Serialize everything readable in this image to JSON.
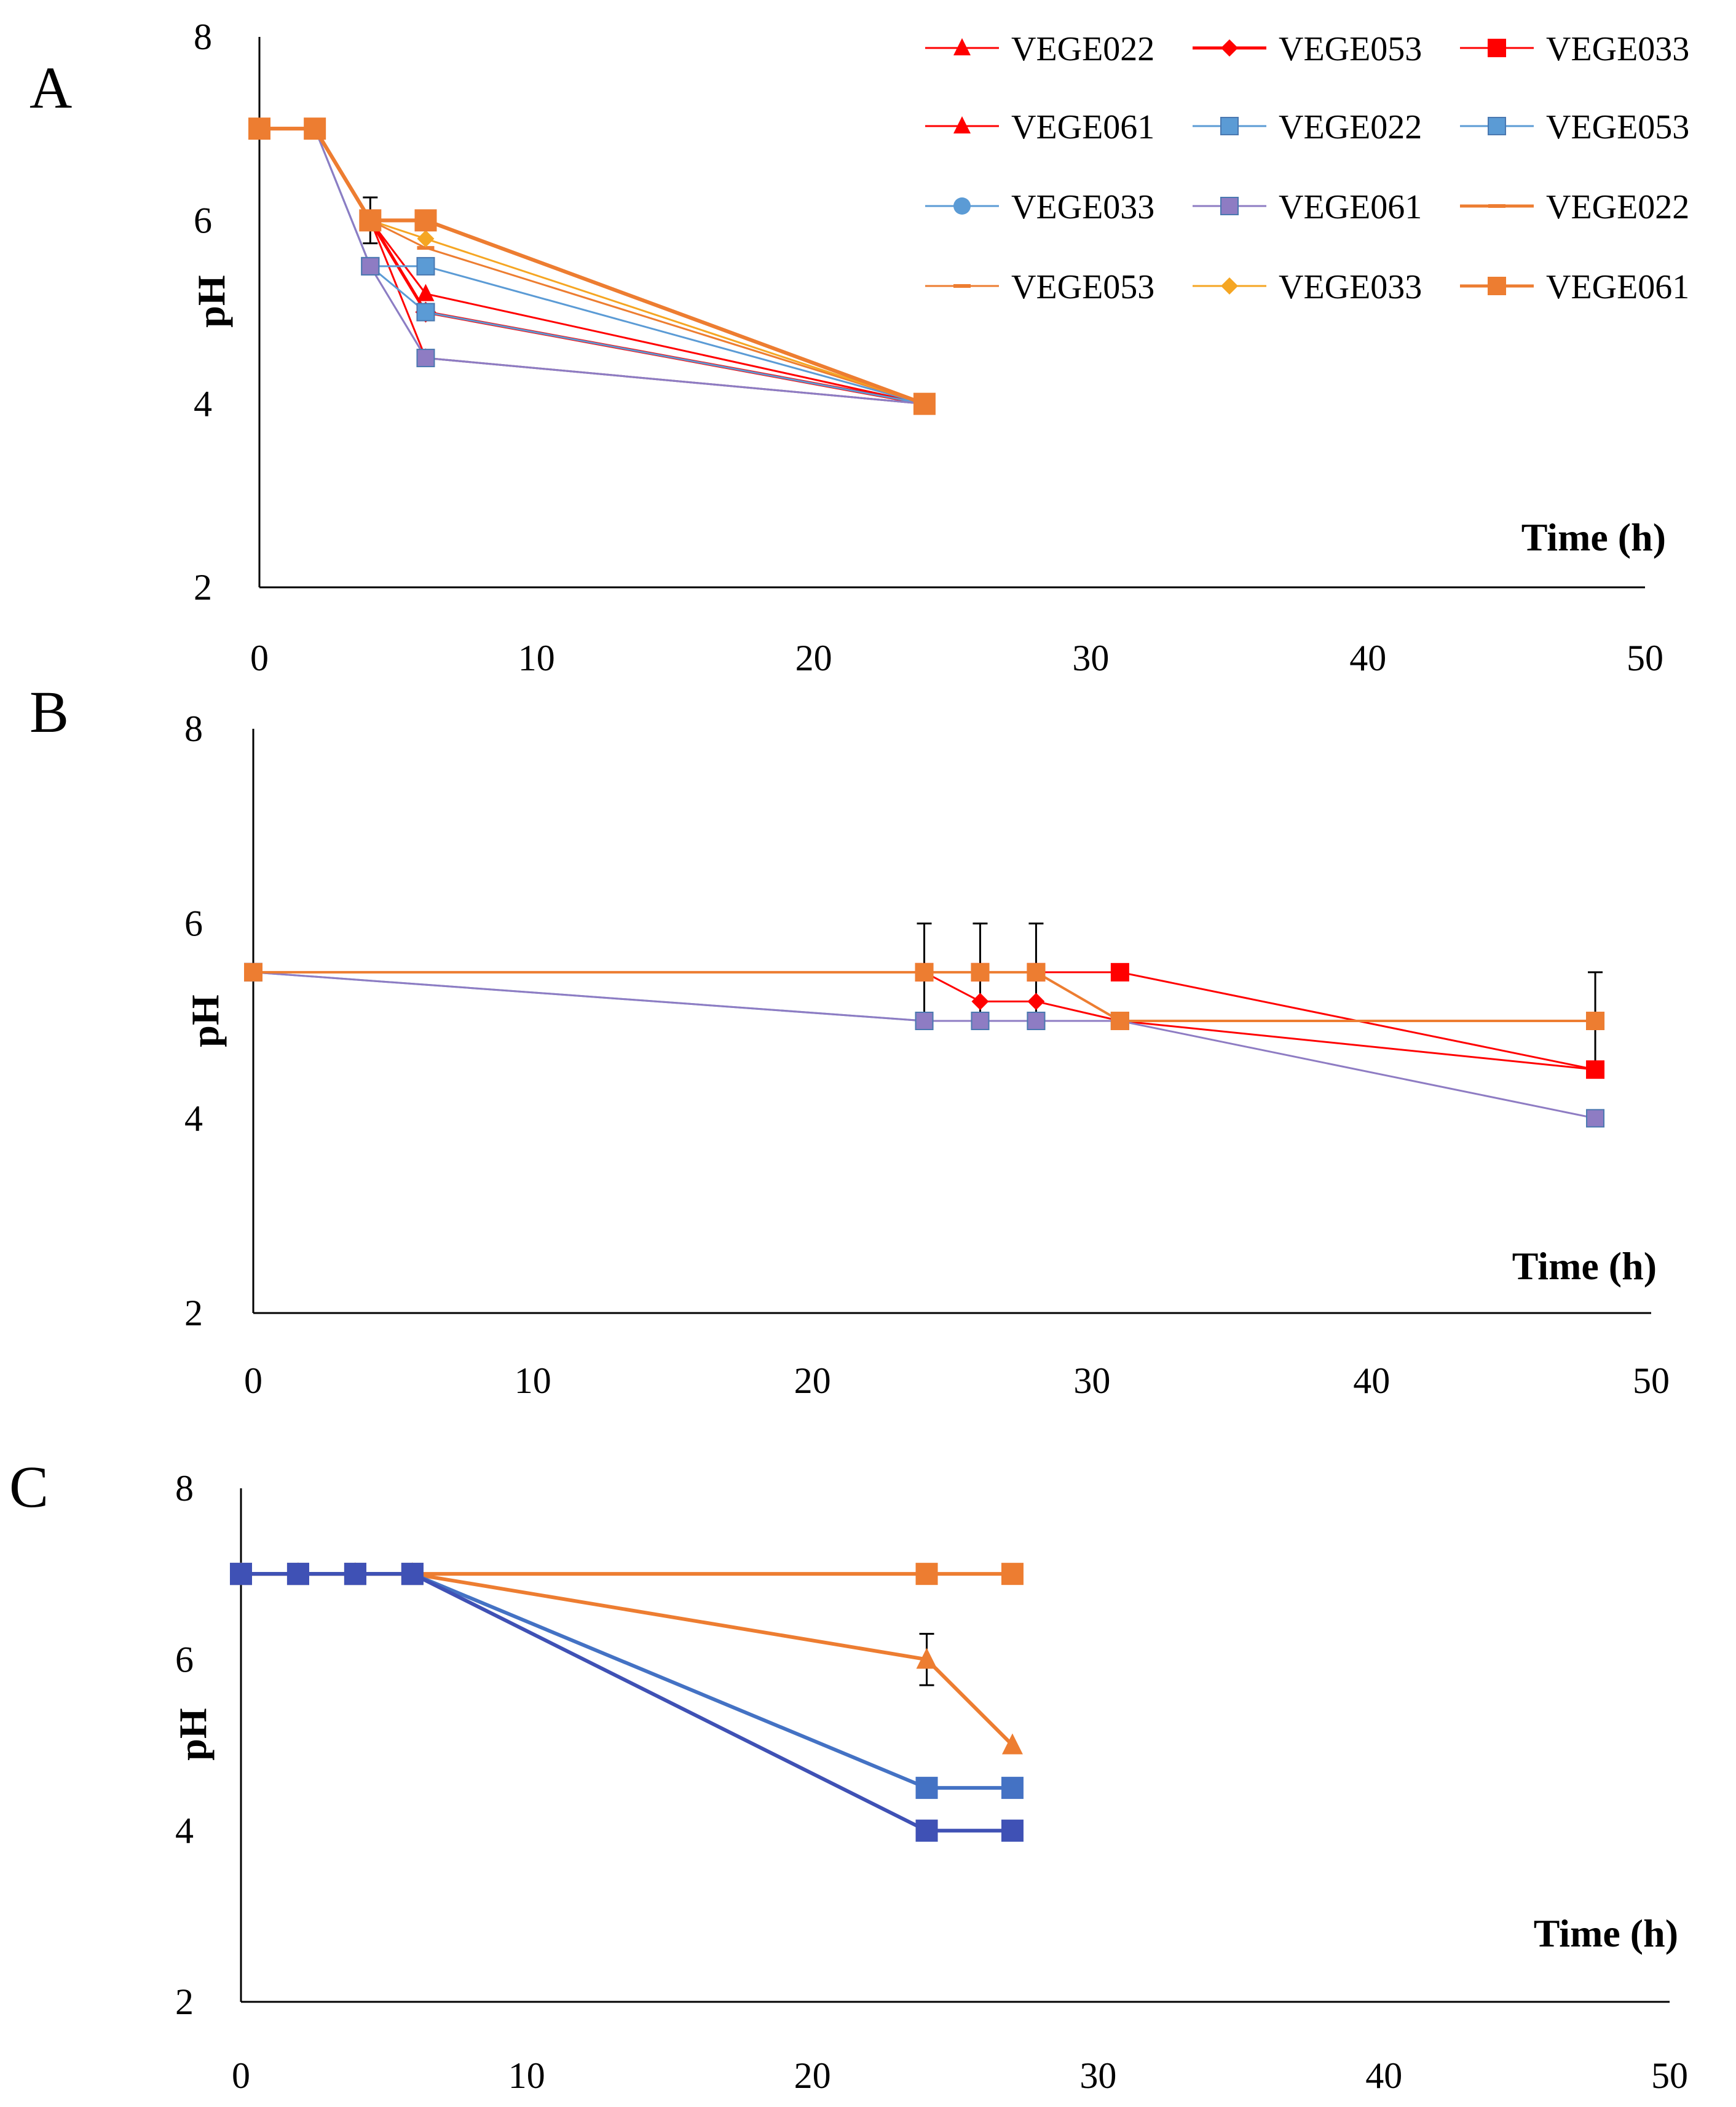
{
  "chart_data": [
    {
      "panel": "A",
      "type": "line",
      "xlabel": "Time (h)",
      "ylabel": "pH",
      "xlim": [
        0,
        50
      ],
      "ylim": [
        2,
        8
      ],
      "xticks": [
        "0",
        "10",
        "20",
        "30",
        "40",
        "50"
      ],
      "yticks": [
        "2",
        "4",
        "6",
        "8"
      ],
      "legend_position": "top-right",
      "series": [
        {
          "name": "VEGE022",
          "color": "#ff0000",
          "marker": "triangle",
          "width": 3,
          "x": [
            0,
            2,
            4,
            6,
            24
          ],
          "y": [
            7,
            7,
            6,
            5.2,
            4
          ]
        },
        {
          "name": "VEGE053",
          "color": "#ff0000",
          "marker": "diamond",
          "width": 5,
          "x": [
            0,
            2,
            4,
            6,
            24
          ],
          "y": [
            7,
            7,
            6,
            5.0,
            4
          ]
        },
        {
          "name": "VEGE033",
          "color": "#ff0000",
          "marker": "square",
          "width": 3,
          "x": [
            0,
            2,
            4,
            6,
            24
          ],
          "y": [
            7,
            7,
            6,
            5.0,
            4
          ]
        },
        {
          "name": "VEGE061",
          "color": "#ff0000",
          "marker": "triangle",
          "width": 3,
          "x": [
            0,
            2,
            4,
            6,
            24
          ],
          "y": [
            7,
            7,
            6,
            4.5,
            4
          ]
        },
        {
          "name": "VEGE022",
          "color": "#5b9bd5",
          "marker": "square",
          "width": 3,
          "x": [
            0,
            2,
            4,
            6,
            24
          ],
          "y": [
            7,
            7,
            5.5,
            5.5,
            4
          ]
        },
        {
          "name": "VEGE053",
          "color": "#5b9bd5",
          "marker": "square",
          "width": 3,
          "x": [
            0,
            2,
            4,
            6,
            24
          ],
          "y": [
            7,
            7,
            5.5,
            5.0,
            4
          ]
        },
        {
          "name": "VEGE033",
          "color": "#5b9bd5",
          "marker": "circle",
          "width": 3,
          "x": [
            0,
            2,
            4,
            6,
            24
          ],
          "y": [
            7,
            7,
            5.5,
            4.5,
            4
          ]
        },
        {
          "name": "VEGE061",
          "color": "#8e7cc3",
          "marker": "square",
          "width": 3,
          "x": [
            0,
            2,
            4,
            6,
            24
          ],
          "y": [
            7,
            7,
            5.5,
            4.5,
            4
          ]
        },
        {
          "name": "VEGE022",
          "color": "#ed7d31",
          "marker": "dash",
          "width": 6,
          "x": [
            0,
            2,
            4,
            6,
            24
          ],
          "y": [
            7,
            7,
            6,
            6.0,
            4
          ]
        },
        {
          "name": "VEGE053",
          "color": "#ed7d31",
          "marker": "dash",
          "width": 3,
          "x": [
            0,
            2,
            4,
            6,
            24
          ],
          "y": [
            7,
            7,
            6,
            5.7,
            4
          ]
        },
        {
          "name": "VEGE033",
          "color": "#f5a623",
          "marker": "diamond",
          "width": 3,
          "x": [
            0,
            2,
            4,
            6,
            24
          ],
          "y": [
            7,
            7,
            6,
            5.8,
            4
          ]
        },
        {
          "name": "VEGE061",
          "color": "#ed7d31",
          "marker": "square",
          "width": 6,
          "x": [
            0,
            2,
            4,
            6,
            24
          ],
          "y": [
            7,
            7,
            6,
            6.0,
            4
          ]
        }
      ],
      "error_bars": [
        {
          "x": 4,
          "y": 6,
          "err": 0.25
        }
      ]
    },
    {
      "panel": "B",
      "type": "line",
      "xlabel": "Time (h)",
      "ylabel": "pH",
      "xlim": [
        0,
        50
      ],
      "ylim": [
        2,
        8
      ],
      "xticks": [
        "0",
        "10",
        "20",
        "30",
        "40",
        "50"
      ],
      "yticks": [
        "2",
        "4",
        "6",
        "8"
      ],
      "series": [
        {
          "name": "VEGE033",
          "color": "#ff0000",
          "marker": "square",
          "width": 3,
          "x": [
            0,
            24,
            26,
            28,
            31,
            48
          ],
          "y": [
            5.5,
            5.5,
            5.5,
            5.5,
            5.5,
            4.5
          ]
        },
        {
          "name": "VEGE053",
          "color": "#ff0000",
          "marker": "diamond",
          "width": 3,
          "x": [
            0,
            24,
            26,
            28,
            31,
            48
          ],
          "y": [
            5.5,
            5.5,
            5.2,
            5.2,
            5.0,
            4.5
          ]
        },
        {
          "name": "VEGE022",
          "color": "#5b9bd5",
          "marker": "square",
          "width": 3,
          "x": [
            0,
            24,
            26,
            28,
            31,
            48
          ],
          "y": [
            5.5,
            5.0,
            5.0,
            5.0,
            5.0,
            5.0
          ]
        },
        {
          "name": "VEGE061",
          "color": "#8e7cc3",
          "marker": "square",
          "width": 3,
          "x": [
            0,
            24,
            26,
            28,
            31,
            48
          ],
          "y": [
            5.5,
            5.0,
            5.0,
            5.0,
            5.0,
            4.0
          ]
        },
        {
          "name": "VEGE061",
          "color": "#ed7d31",
          "marker": "square",
          "width": 4,
          "x": [
            0,
            24,
            26,
            28,
            31,
            48
          ],
          "y": [
            5.5,
            5.5,
            5.5,
            5.5,
            5.0,
            5.0
          ]
        }
      ],
      "error_bars": [
        {
          "x": 24,
          "y": 5.5,
          "err": 0.5
        },
        {
          "x": 26,
          "y": 5.5,
          "err": 0.5
        },
        {
          "x": 28,
          "y": 5.5,
          "err": 0.5
        },
        {
          "x": 48,
          "y": 5.0,
          "err": 0.5
        }
      ]
    },
    {
      "panel": "C",
      "type": "line",
      "xlabel": "Time (h)",
      "ylabel": "pH",
      "xlim": [
        0,
        50
      ],
      "ylim": [
        2,
        8
      ],
      "xticks": [
        "0",
        "10",
        "20",
        "30",
        "40",
        "50"
      ],
      "yticks": [
        "2",
        "4",
        "6",
        "8"
      ],
      "series": [
        {
          "name": "VEGE022",
          "color": "#ed7d31",
          "marker": "square",
          "width": 6,
          "x": [
            0,
            2,
            4,
            6,
            24,
            27
          ],
          "y": [
            7,
            7,
            7,
            7,
            7,
            7
          ]
        },
        {
          "name": "VEGE053",
          "color": "#ed7d31",
          "marker": "triangle",
          "width": 6,
          "x": [
            0,
            2,
            4,
            6,
            24,
            27
          ],
          "y": [
            7,
            7,
            7,
            7,
            6,
            5
          ]
        },
        {
          "name": "VEGE033",
          "color": "#4472c4",
          "marker": "square",
          "width": 6,
          "x": [
            0,
            2,
            4,
            6,
            24,
            27
          ],
          "y": [
            7,
            7,
            7,
            7,
            4.5,
            4.5
          ]
        },
        {
          "name": "VEGE061",
          "color": "#3f51b5",
          "marker": "square",
          "width": 6,
          "x": [
            0,
            2,
            4,
            6,
            24,
            27
          ],
          "y": [
            7,
            7,
            7,
            7,
            4,
            4
          ]
        }
      ],
      "error_bars": [
        {
          "x": 24,
          "y": 6,
          "err": 0.3
        }
      ]
    }
  ]
}
